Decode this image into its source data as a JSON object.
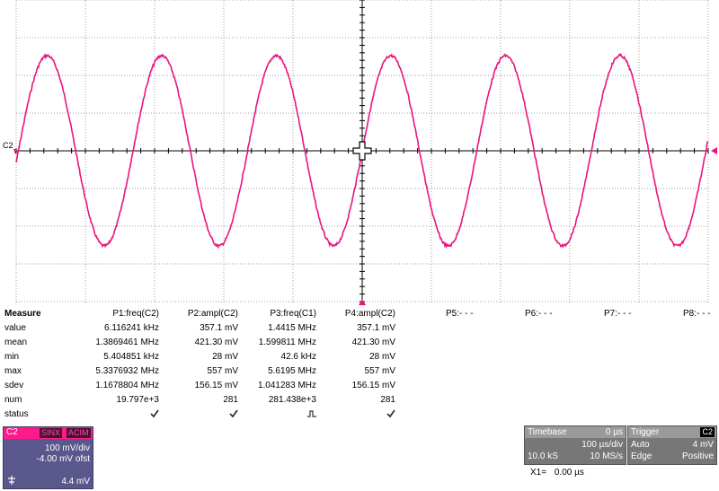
{
  "scope": {
    "channel_marker": "C2",
    "colors": {
      "trace": "#e8157f",
      "grid": "#9e9e9e",
      "background": "#ffffff",
      "axis": "#000000"
    },
    "cursor_icon": "crosshair-cursor-icon",
    "trigger_marker_icon": "trigger-arrow-icon",
    "level_marker_icon": "level-arrow-icon"
  },
  "measure": {
    "title": "Measure",
    "row_labels": [
      "value",
      "mean",
      "min",
      "max",
      "sdev",
      "num",
      "status"
    ],
    "params": [
      {
        "label": "P1:freq(C2)",
        "value": "6.116241 kHz",
        "mean": "1.3869461 MHz",
        "min": "5.404851 kHz",
        "max": "5.3376932 MHz",
        "sdev": "1.1678804 MHz",
        "num": "19.797e+3",
        "status_icon": "check-icon"
      },
      {
        "label": "P2:ampl(C2)",
        "value": "357.1 mV",
        "mean": "421.30 mV",
        "min": "28 mV",
        "max": "557 mV",
        "sdev": "156.15 mV",
        "num": "281",
        "status_icon": "check-icon"
      },
      {
        "label": "P3:freq(C1)",
        "value": "1.4415 MHz",
        "mean": "1.599811 MHz",
        "min": "42.6 kHz",
        "max": "5.6195 MHz",
        "sdev": "1.041283 MHz",
        "num": "281.438e+3",
        "status_icon": "pulse-status-icon"
      },
      {
        "label": "P4:ampl(C2)",
        "value": "357.1 mV",
        "mean": "421.30 mV",
        "min": "28 mV",
        "max": "557 mV",
        "sdev": "156.15 mV",
        "num": "281",
        "status_icon": "check-icon"
      }
    ],
    "empty_params": [
      "P5:- - -",
      "P6:- - -",
      "P7:- - -",
      "P8:- - -"
    ]
  },
  "channel": {
    "name": "C2",
    "tags": [
      "SINX",
      "ACIM"
    ],
    "vdiv": "100 mV/div",
    "offset": "-4.00 mV ofst",
    "value": "4.4 mV",
    "icon": "probe-icon"
  },
  "timebase": {
    "label": "Timebase",
    "delay": "0 µs",
    "tdiv": "100 µs/div",
    "samples": "10.0 kS",
    "rate": "10 MS/s"
  },
  "trigger": {
    "label": "Trigger",
    "channel": "C2",
    "mode": "Auto",
    "level": "4 mV",
    "type": "Edge",
    "slope": "Positive"
  },
  "cursor": {
    "label": "X1=",
    "value": "0.00 µs"
  }
}
